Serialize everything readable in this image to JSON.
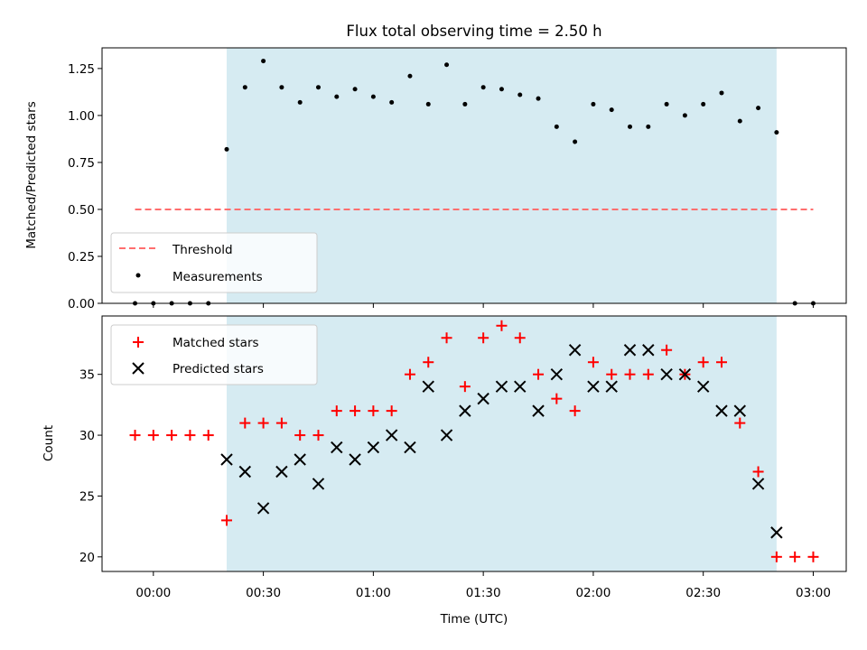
{
  "chart_data": [
    {
      "type": "scatter",
      "title": "Flux total observing time = 2.50 h",
      "xlabel": "",
      "ylabel": "Matched/Predicted stars",
      "ylim": [
        0,
        1.36
      ],
      "yticks": [
        "0.00",
        "0.25",
        "0.50",
        "0.75",
        "1.00",
        "1.25"
      ],
      "ytick_values": [
        0,
        0.25,
        0.5,
        0.75,
        1.0,
        1.25
      ],
      "xlim": [
        "-00:14",
        "03:09"
      ],
      "xticks": [
        "00:00",
        "00:30",
        "01:00",
        "01:30",
        "02:00",
        "02:30",
        "03:00"
      ],
      "shaded_region": {
        "start": "00:20",
        "end": "02:50",
        "color": "#add8e6"
      },
      "threshold": {
        "name": "Threshold",
        "value": 0.5,
        "x_start": "-00:05",
        "x_end": "03:00",
        "color": "#ff6e6e",
        "style": "dashed"
      },
      "legend": {
        "position": "lower-left",
        "entries": [
          "Threshold",
          "Measurements"
        ]
      },
      "series": [
        {
          "name": "Measurements",
          "x": [
            "-00:05",
            "00:00",
            "00:05",
            "00:10",
            "00:15",
            "00:20",
            "00:25",
            "00:30",
            "00:35",
            "00:40",
            "00:45",
            "00:50",
            "00:55",
            "01:00",
            "01:05",
            "01:10",
            "01:15",
            "01:20",
            "01:25",
            "01:30",
            "01:35",
            "01:40",
            "01:45",
            "01:50",
            "01:55",
            "02:00",
            "02:05",
            "02:10",
            "02:15",
            "02:20",
            "02:25",
            "02:30",
            "02:35",
            "02:40",
            "02:45",
            "02:50",
            "02:55",
            "03:00"
          ],
          "y": [
            0,
            0,
            0,
            0,
            0,
            0.82,
            1.15,
            1.29,
            1.15,
            1.07,
            1.15,
            1.1,
            1.14,
            1.1,
            1.07,
            1.21,
            1.06,
            1.27,
            1.06,
            1.15,
            1.14,
            1.11,
            1.09,
            0.94,
            0.86,
            1.06,
            1.03,
            0.94,
            0.94,
            1.06,
            1.0,
            1.06,
            1.12,
            0.97,
            1.04,
            0.91,
            0,
            0
          ],
          "color": "#000000",
          "marker": "dot"
        }
      ]
    },
    {
      "type": "scatter",
      "title": "",
      "xlabel": "Time (UTC)",
      "ylabel": "Count",
      "ylim": [
        18.8,
        39.8
      ],
      "yticks": [
        "20",
        "25",
        "30",
        "35"
      ],
      "ytick_values": [
        20,
        25,
        30,
        35
      ],
      "xlim": [
        "-00:14",
        "03:09"
      ],
      "xticks": [
        "00:00",
        "00:30",
        "01:00",
        "01:30",
        "02:00",
        "02:30",
        "03:00"
      ],
      "shaded_region": {
        "start": "00:20",
        "end": "02:50",
        "color": "#add8e6"
      },
      "legend": {
        "position": "upper-left",
        "entries": [
          "Matched stars",
          "Predicted stars"
        ]
      },
      "series": [
        {
          "name": "Matched stars",
          "x": [
            "-00:05",
            "00:00",
            "00:05",
            "00:10",
            "00:15",
            "00:20",
            "00:25",
            "00:30",
            "00:35",
            "00:40",
            "00:45",
            "00:50",
            "00:55",
            "01:00",
            "01:05",
            "01:10",
            "01:15",
            "01:20",
            "01:25",
            "01:30",
            "01:35",
            "01:40",
            "01:45",
            "01:50",
            "01:55",
            "02:00",
            "02:05",
            "02:10",
            "02:15",
            "02:20",
            "02:25",
            "02:30",
            "02:35",
            "02:40",
            "02:45",
            "02:50",
            "02:55",
            "03:00"
          ],
          "y": [
            30,
            30,
            30,
            30,
            30,
            23,
            31,
            31,
            31,
            30,
            30,
            32,
            32,
            32,
            32,
            35,
            36,
            38,
            34,
            38,
            39,
            38,
            35,
            33,
            32,
            36,
            35,
            35,
            35,
            37,
            35,
            36,
            36,
            31,
            27,
            20,
            20,
            20
          ],
          "color": "#ff0000",
          "marker": "plus"
        },
        {
          "name": "Predicted stars",
          "x": [
            "00:20",
            "00:25",
            "00:30",
            "00:35",
            "00:40",
            "00:45",
            "00:50",
            "00:55",
            "01:00",
            "01:05",
            "01:10",
            "01:15",
            "01:20",
            "01:25",
            "01:30",
            "01:35",
            "01:40",
            "01:45",
            "01:50",
            "01:55",
            "02:00",
            "02:05",
            "02:10",
            "02:15",
            "02:20",
            "02:25",
            "02:30",
            "02:35",
            "02:40",
            "02:45",
            "02:50"
          ],
          "y": [
            28,
            27,
            24,
            27,
            28,
            26,
            29,
            28,
            29,
            30,
            29,
            34,
            30,
            32,
            33,
            34,
            34,
            32,
            35,
            37,
            34,
            34,
            37,
            37,
            35,
            35,
            34,
            32,
            32,
            26,
            22
          ],
          "color": "#000000",
          "marker": "x"
        }
      ]
    }
  ]
}
